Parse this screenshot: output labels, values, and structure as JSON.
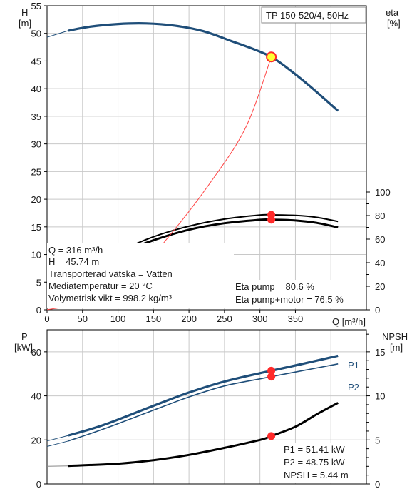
{
  "colors": {
    "head_curve": "#1f4e79",
    "power_curve": "#1f4e79",
    "efficiency_curve": "#000000",
    "npsh_curve": "#000000",
    "duty_point_marker": "#ff2a2a",
    "head_duty_marker_fill": "#ffff33",
    "system_curve": "#ff4444",
    "grid": "#c8c8c8",
    "label_box_bg": "#ffffff"
  },
  "chart_data": [
    {
      "type": "line",
      "title": "TP 150-520/4, 50Hz",
      "xlabel": "Q [m³/h]",
      "ylabel": "H",
      "ylabel_unit": "[m]",
      "y2label": "eta",
      "y2label_unit": "[%]",
      "xlim": [
        0,
        450
      ],
      "ylim": [
        0,
        55
      ],
      "y2lim": [
        0,
        100
      ],
      "xticks": [
        "0",
        "50",
        "100",
        "150",
        "200",
        "250",
        "300",
        "350"
      ],
      "xtick_values": [
        0,
        50,
        100,
        150,
        200,
        250,
        300,
        350
      ],
      "yticks": [
        "0",
        "5",
        "10",
        "15",
        "20",
        "25",
        "30",
        "35",
        "40",
        "45",
        "50",
        "55"
      ],
      "ytick_values": [
        0,
        5,
        10,
        15,
        20,
        25,
        30,
        35,
        40,
        45,
        50,
        55
      ],
      "y2ticks": [
        "0",
        "20",
        "40",
        "60",
        "80",
        "100"
      ],
      "y2tick_values": [
        0,
        20,
        40,
        60,
        80,
        100
      ],
      "grid": true,
      "series": [
        {
          "role": "head",
          "axis": "left",
          "x": [
            0,
            30,
            60,
            100,
            140,
            180,
            220,
            260,
            290,
            316,
            340,
            370,
            410
          ],
          "values": [
            49.3,
            50.5,
            51.2,
            51.7,
            51.8,
            51.4,
            50.4,
            48.6,
            47.2,
            45.74,
            43.6,
            40.5,
            36.0
          ]
        },
        {
          "role": "eta_pump",
          "axis": "right",
          "x": [
            0,
            60,
            100,
            150,
            200,
            250,
            300,
            316,
            350,
            380,
            410
          ],
          "values": [
            7,
            35,
            49,
            62,
            71,
            77,
            80.4,
            80.6,
            80.1,
            78.5,
            75.0
          ]
        },
        {
          "role": "eta_pump_motor",
          "axis": "right",
          "x": [
            0,
            60,
            100,
            150,
            200,
            250,
            300,
            316,
            350,
            380,
            410
          ],
          "values": [
            6,
            33,
            47,
            59,
            68,
            73.5,
            76.4,
            76.5,
            75.8,
            73.8,
            70.0
          ]
        },
        {
          "role": "system_curve",
          "axis": "left",
          "x": [
            0,
            100,
            170,
            230,
            280,
            316
          ],
          "values": [
            0,
            3,
            13,
            23,
            33,
            45.74
          ]
        }
      ],
      "duty_point": {
        "x": 316,
        "head": 45.74,
        "eta_pump": 80.6,
        "eta_pump_motor": 76.5
      }
    },
    {
      "type": "line",
      "xlim": [
        0,
        450
      ],
      "ylabel": "P",
      "ylabel_unit": "[kW]",
      "y2label": "NPSH",
      "y2label_unit": "[m]",
      "ylim": [
        0,
        70
      ],
      "y2lim": [
        0,
        17.5
      ],
      "yticks": [
        "0",
        "20",
        "40",
        "60"
      ],
      "ytick_values": [
        0,
        20,
        40,
        60
      ],
      "y2ticks": [
        "0",
        "5",
        "10",
        "15"
      ],
      "y2tick_values": [
        0,
        5,
        10,
        15
      ],
      "grid": true,
      "series": [
        {
          "name": "P1",
          "axis": "left",
          "x": [
            0,
            30,
            80,
            150,
            200,
            250,
            300,
            316,
            350,
            410
          ],
          "values": [
            19.5,
            22,
            26.8,
            35.5,
            41.5,
            46.5,
            50.3,
            51.41,
            53.8,
            58.2
          ]
        },
        {
          "name": "P2",
          "axis": "left",
          "x": [
            0,
            30,
            80,
            150,
            200,
            250,
            300,
            316,
            350,
            410
          ],
          "values": [
            17,
            19.5,
            25,
            33.5,
            39.5,
            44.5,
            47.7,
            48.75,
            50.8,
            54.5
          ]
        },
        {
          "role": "npsh",
          "axis": "right",
          "x": [
            0,
            30,
            100,
            150,
            200,
            250,
            300,
            316,
            350,
            380,
            410
          ],
          "values": [
            2.0,
            2.05,
            2.3,
            2.7,
            3.3,
            4.1,
            5.0,
            5.44,
            6.5,
            7.9,
            9.2
          ]
        }
      ],
      "duty_point": {
        "x": 316,
        "P1": 51.41,
        "P2": 48.75,
        "npsh": 5.44
      }
    }
  ],
  "info_top": {
    "q": "Q = 316 m³/h",
    "h": "H = 45.74 m",
    "liquid": "Transporterad vätska = Vatten",
    "temp": "Mediatemperatur = 20 °C",
    "density": "Volymetrisk vikt = 998.2 kg/m³",
    "eta_pump": "Eta pump = 80.6 %",
    "eta_pump_motor": "Eta pump+motor = 76.5 %"
  },
  "info_bottom": {
    "p1": "P1 = 51.41 kW",
    "p2": "P2 = 48.75 kW",
    "npsh": "NPSH = 5.44 m"
  }
}
